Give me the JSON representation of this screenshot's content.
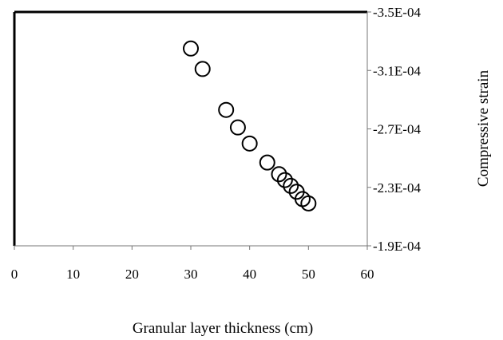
{
  "chart_data": {
    "type": "scatter",
    "title": "",
    "xlabel": "Granular layer thickness (cm)",
    "ylabel": "Compressive strain",
    "xlim": [
      0,
      60
    ],
    "ylim": [
      -0.00019,
      -0.00035
    ],
    "y_axis_side": "right",
    "y_axis_reversed": true,
    "x_ticks": [
      "0",
      "10",
      "20",
      "30",
      "40",
      "50",
      "60"
    ],
    "y_ticks": [
      "-3.5E-04",
      "-3.1E-04",
      "-2.7E-04",
      "-2.3E-04",
      "-1.9E-04"
    ],
    "grid": false,
    "legend": "none",
    "marker": "open-circle",
    "marker_color": "#000000",
    "series": [
      {
        "points": [
          {
            "x": 30,
            "y": -0.000325
          },
          {
            "x": 32,
            "y": -0.000311
          },
          {
            "x": 36,
            "y": -0.000283
          },
          {
            "x": 38,
            "y": -0.000271
          },
          {
            "x": 40,
            "y": -0.00026
          },
          {
            "x": 43,
            "y": -0.000247
          },
          {
            "x": 45,
            "y": -0.000239
          },
          {
            "x": 46,
            "y": -0.000235
          },
          {
            "x": 47,
            "y": -0.000231
          },
          {
            "x": 48,
            "y": -0.000227
          },
          {
            "x": 49,
            "y": -0.000222
          },
          {
            "x": 50,
            "y": -0.000219
          }
        ]
      }
    ]
  }
}
